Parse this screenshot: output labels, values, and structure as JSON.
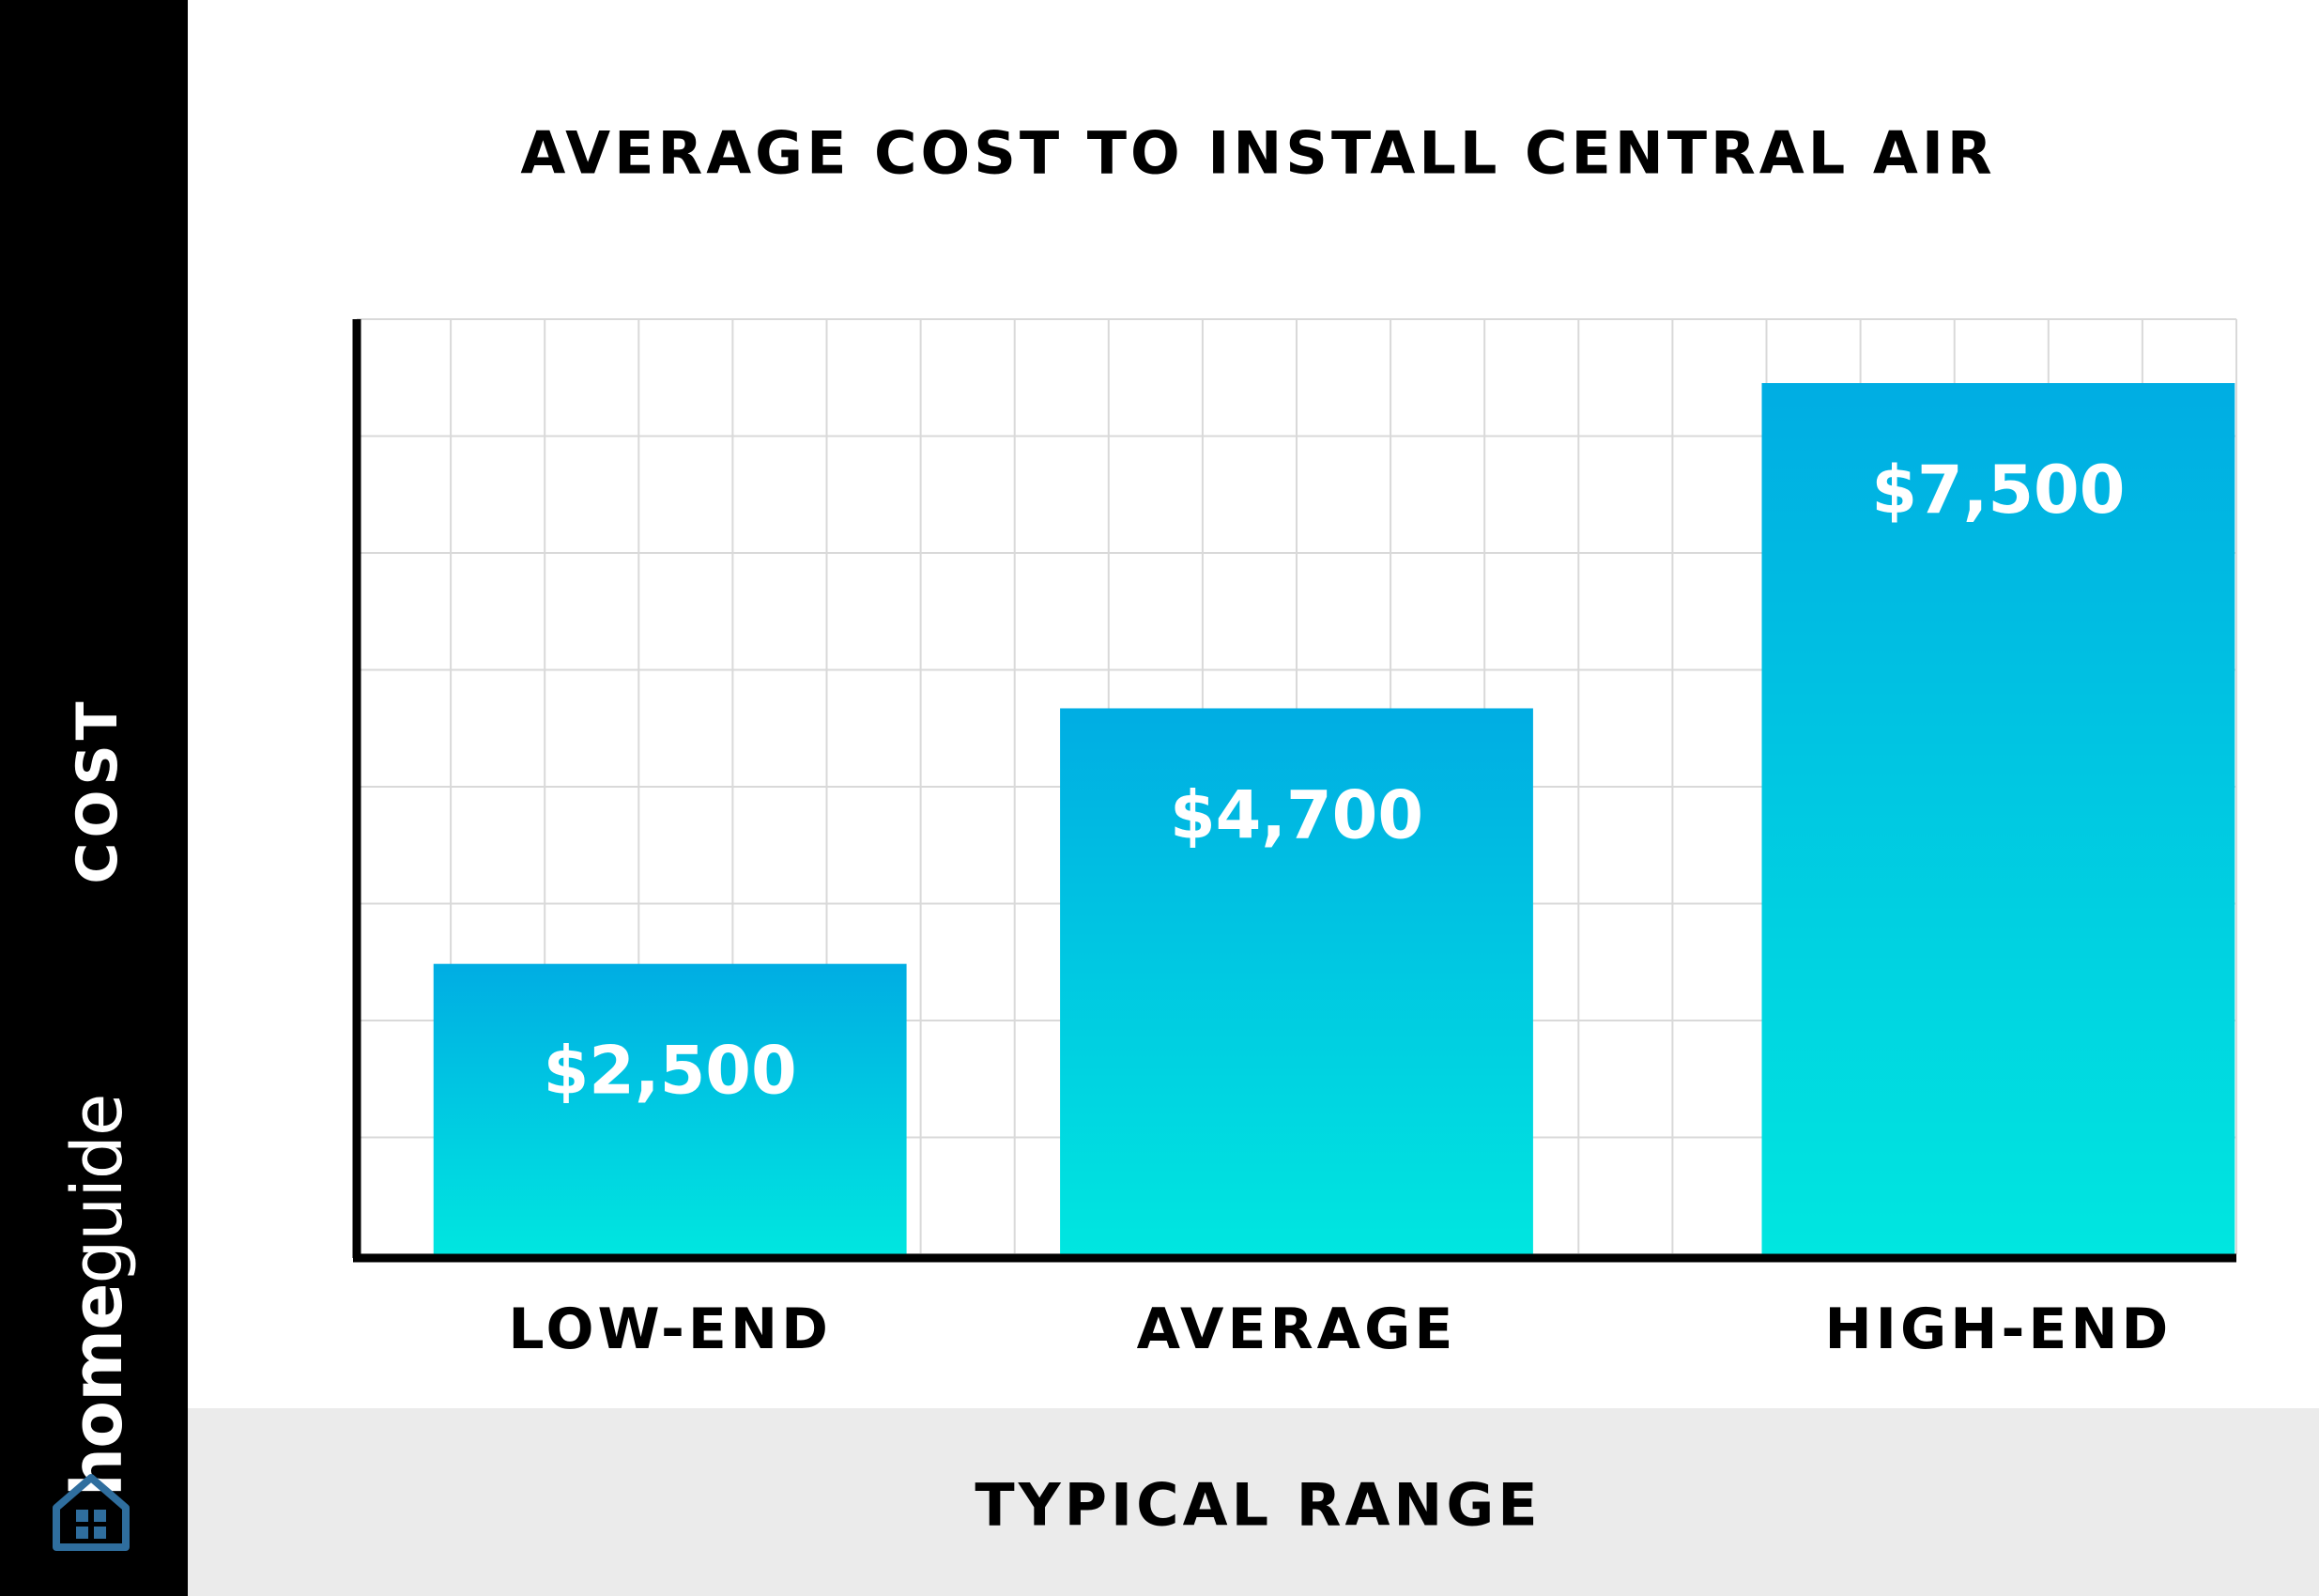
{
  "chart_data": {
    "type": "bar",
    "title": "AVERAGE COST TO INSTALL CENTRAL AIR",
    "xlabel": "TYPICAL RANGE",
    "ylabel": "COST",
    "categories": [
      "LOW-END",
      "AVERAGE",
      "HIGH-END"
    ],
    "values": [
      2500,
      4700,
      7500
    ],
    "value_labels": [
      "$2,500",
      "$4,700",
      "$7,500"
    ],
    "ylim": [
      0,
      8050
    ],
    "grid": true,
    "legend": "none"
  },
  "brand": {
    "home": "home",
    "guide": "guide",
    "logo_icon": "house-icon"
  },
  "colors": {
    "bar_top": "#00ade3",
    "bar_bottom": "#00e6e0",
    "grid": "#d9d9d9",
    "axis": "#000000",
    "band": "#000000",
    "footer": "#ebebeb",
    "logo": "#2f6e9e"
  }
}
